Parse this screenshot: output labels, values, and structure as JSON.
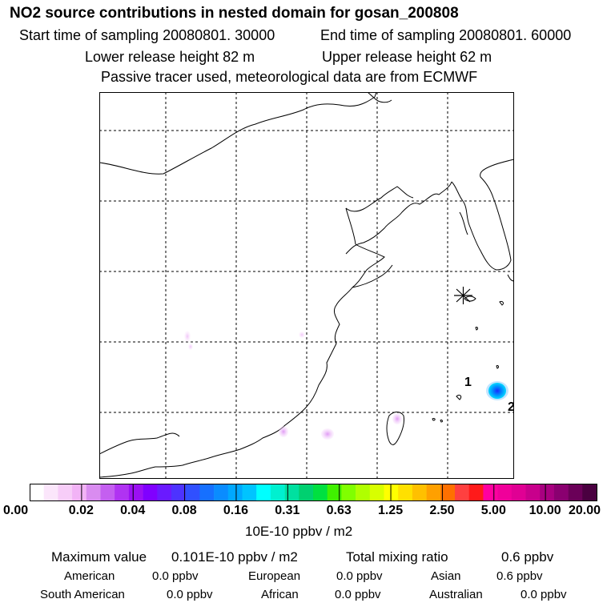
{
  "title": "NO2 source contributions in nested domain for gosan_200808",
  "sampling": {
    "start": "Start time of sampling 20080801. 30000",
    "end": "End time of sampling 20080801. 60000"
  },
  "release": {
    "lower": "Lower release height   82 m",
    "upper": "Upper release height   62 m"
  },
  "note": "Passive tracer used, meteorological data are from ECMWF",
  "map": {
    "receptor_marker": "receptor-star-icon",
    "labels": [
      "1",
      "2"
    ],
    "coast_color": "#000000",
    "grid_color": "#000000"
  },
  "colorbar": {
    "unit": "10E-10 ppbv / m2",
    "ticks": [
      "0.00",
      "0.02",
      "0.04",
      "0.08",
      "0.16",
      "0.31",
      "0.63",
      "1.25",
      "2.50",
      "5.00",
      "10.00",
      "20.00"
    ],
    "colors": [
      "#ffffff",
      "#fbe6fb",
      "#f7cdf8",
      "#f2b3f6",
      "#d98cf0",
      "#c45ff0",
      "#b033f2",
      "#9b10f2",
      "#8000ff",
      "#6a1aff",
      "#4d33ff",
      "#3050ff",
      "#1670ff",
      "#0a8cff",
      "#00a8ff",
      "#00c4ff",
      "#00ffff",
      "#00f0d0",
      "#00e0a0",
      "#00d070",
      "#00e040",
      "#40f000",
      "#80ff00",
      "#b0ff00",
      "#d8ff00",
      "#ffff00",
      "#ffe000",
      "#ffc000",
      "#ffa000",
      "#ff7000",
      "#ff4040",
      "#ff1a1a",
      "#ff00a0",
      "#f0009a",
      "#e00094",
      "#c8008c",
      "#a80080",
      "#8a0070",
      "#6a0058",
      "#4a0040"
    ]
  },
  "summary": {
    "max_label": "Maximum value",
    "max_value": "0.101E-10 ppbv / m2",
    "total_label": "Total mixing ratio",
    "total_value": "0.6 ppbv"
  },
  "regions": [
    {
      "name": "American",
      "value": "0.0 ppbv"
    },
    {
      "name": "European",
      "value": "0.0 ppbv"
    },
    {
      "name": "Asian",
      "value": "0.6 ppbv"
    },
    {
      "name": "South American",
      "value": "0.0 ppbv"
    },
    {
      "name": "African",
      "value": "0.0 ppbv"
    },
    {
      "name": "Australian",
      "value": "0.0 ppbv"
    }
  ]
}
